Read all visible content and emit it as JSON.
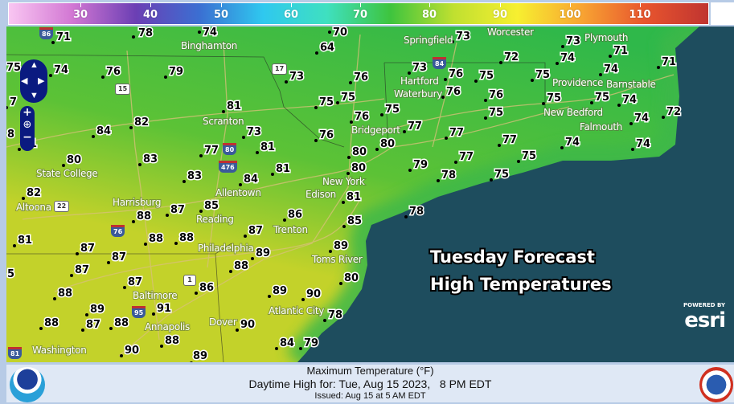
{
  "colorbar": {
    "unit": "°F",
    "ticks": [
      "30",
      "40",
      "50",
      "60",
      "70",
      "80",
      "90",
      "100",
      "110"
    ],
    "colors": [
      "#f9c6f2",
      "#d277d3",
      "#6b3fb4",
      "#3b6fd2",
      "#2fc8ef",
      "#3fe0c0",
      "#3ec43e",
      "#c0e030",
      "#f7ef30",
      "#f8a532",
      "#e8552e",
      "#c03430"
    ]
  },
  "map": {
    "overlay_title": [
      "Tuesday Forecast",
      "High Temperatures"
    ],
    "esri_powered": "POWERED BY",
    "esri_logo": "esri",
    "land_colors": {
      "north": "#2fb84a",
      "mid": "#5cc236",
      "south": "#c3d22a"
    },
    "ocean_color": "#1e4d5e",
    "temperatures": [
      71,
      78,
      74,
      70,
      64,
      75,
      74,
      76,
      79,
      73,
      76,
      7,
      75,
      75,
      81,
      76,
      82,
      84,
      73,
      76,
      81,
      81,
      80,
      77,
      80,
      83,
      81,
      80,
      83,
      84,
      8,
      73,
      72,
      73,
      74,
      71,
      71,
      73,
      76,
      75,
      75,
      74,
      76,
      76,
      75,
      75,
      74,
      75,
      75,
      72,
      74,
      77,
      77,
      77,
      74,
      74,
      80,
      77,
      75,
      79,
      78,
      75,
      82,
      87,
      85,
      88,
      86,
      81,
      87,
      85,
      81,
      87,
      88,
      88,
      87,
      89,
      89,
      87,
      88,
      5,
      80,
      87,
      86,
      88,
      89,
      90,
      89,
      91,
      78,
      88,
      87,
      88,
      90,
      84,
      79,
      88,
      90,
      89,
      78
    ],
    "cities": [
      "Binghamton",
      "Scranton",
      "State College",
      "Altoona",
      "Harrisburg",
      "Reading",
      "Allentown",
      "New York",
      "Edison",
      "Trenton",
      "Philadelphia",
      "Toms River",
      "Atlantic City",
      "Dover",
      "Annapolis",
      "Baltimore",
      "Washington",
      "Springfield",
      "Hartford",
      "Waterbury",
      "Bridgeport",
      "Worcester",
      "Providence",
      "New Bedford",
      "Plymouth",
      "Barnstable",
      "Falmouth"
    ],
    "highway_shields": [
      "86",
      "17",
      "15",
      "84",
      "80",
      "476",
      "22",
      "76",
      "1",
      "95",
      "81"
    ],
    "nav_controls": {
      "zoom_in": "+",
      "zoom_out": "−"
    }
  },
  "footer": {
    "title": "Maximum Temperature (°F)",
    "valid": "Daytime High for: Tue, Aug 15 2023,   8 PM EDT",
    "issued": "Issued: Aug 15 at 5 AM EDT"
  }
}
